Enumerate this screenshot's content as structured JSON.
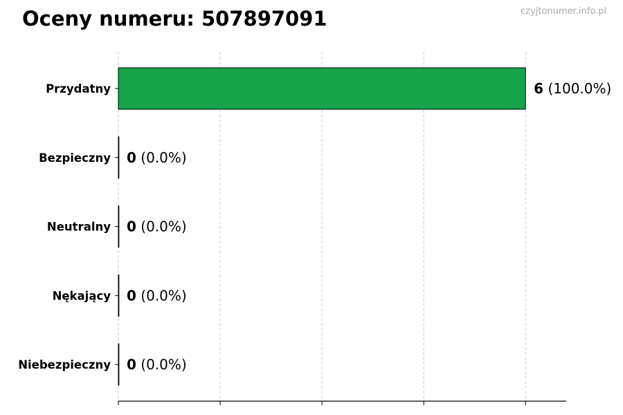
{
  "title": "Oceny numeru: 507897091",
  "watermark": "czyjtonumer.info.pl",
  "chart_data": {
    "type": "bar",
    "orientation": "horizontal",
    "title": "Oceny numeru: 507897091",
    "categories": [
      "Przydatny",
      "Bezpieczny",
      "Neutralny",
      "Nękający",
      "Niebezpieczny"
    ],
    "values": [
      6,
      0,
      0,
      0,
      0
    ],
    "percentages": [
      "100.0%",
      "0.0%",
      "0.0%",
      "0.0%",
      "0.0%"
    ],
    "xlim": [
      0,
      6.6
    ],
    "xticks": [
      0,
      1.5,
      3,
      4.5,
      6
    ],
    "xtick_labels_shown": false,
    "grid": "vertical dashed",
    "bar_color": "#16a34a",
    "bar_edge_color": "#000000"
  }
}
